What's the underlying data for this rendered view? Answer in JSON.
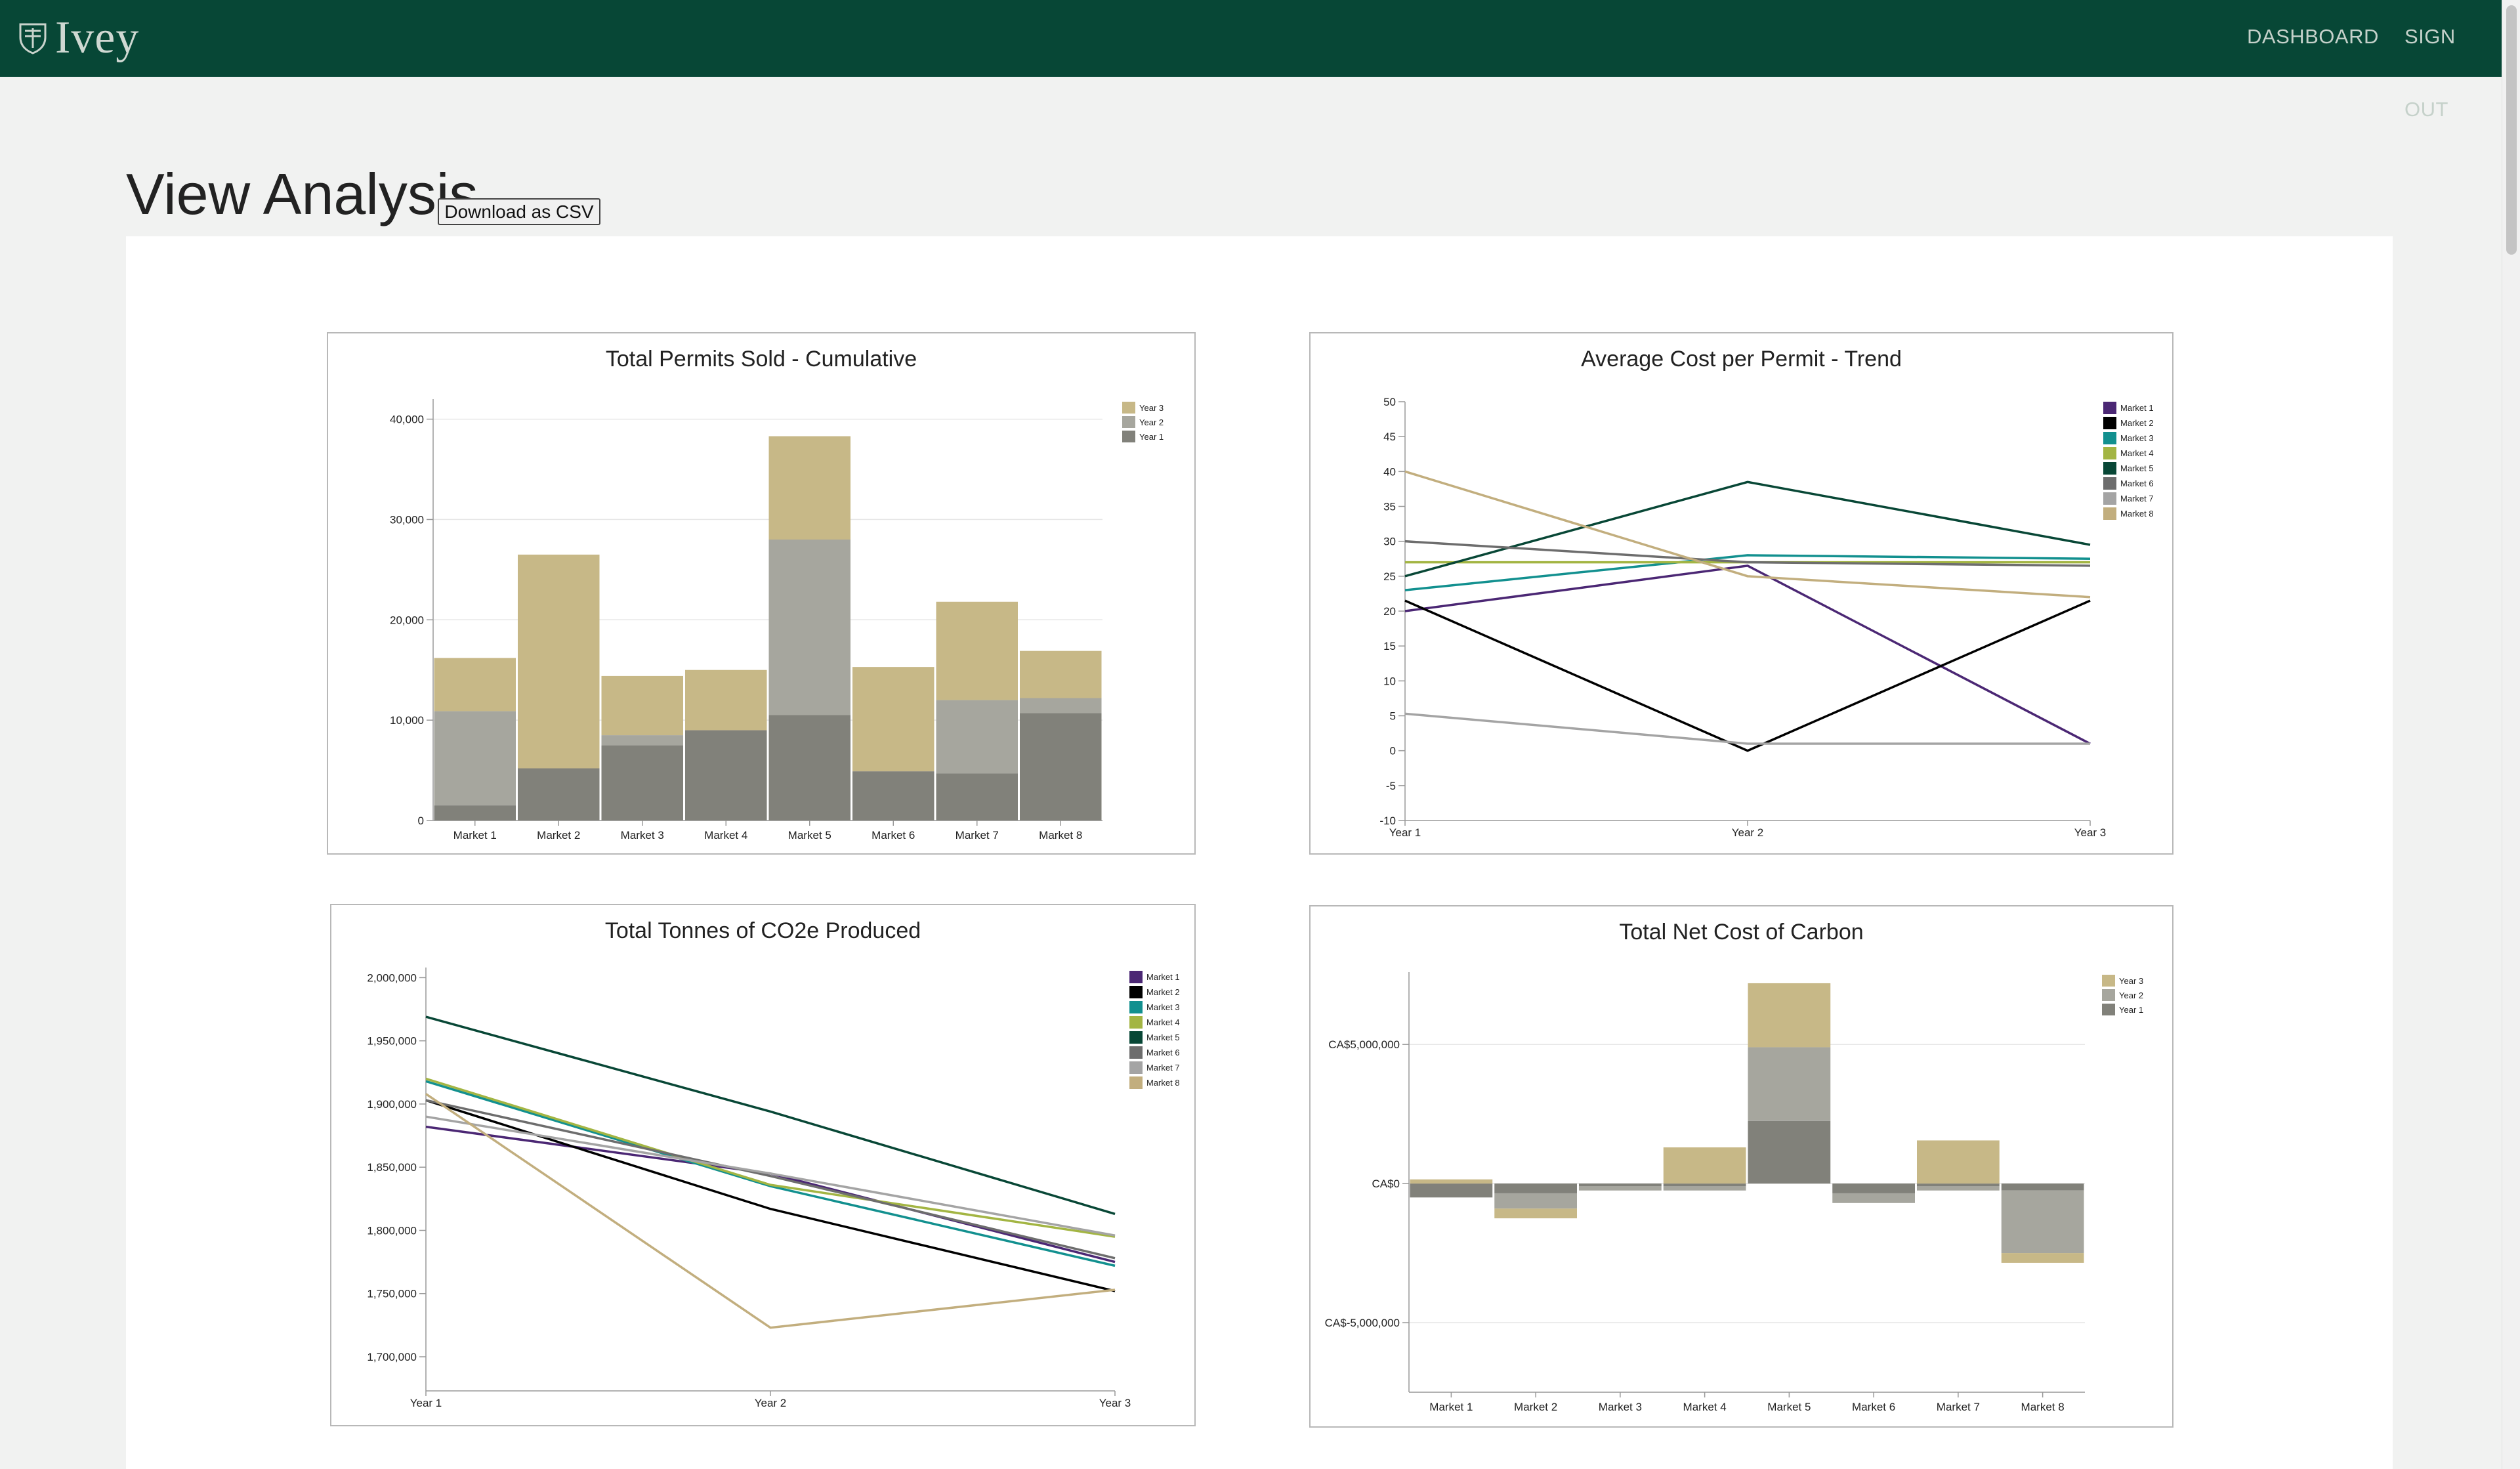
{
  "header": {
    "logo_text": "Ivey",
    "nav": {
      "dashboard": "DASHBOARD",
      "sign_out": "SIGN OUT"
    }
  },
  "page": {
    "title": "View Analysis",
    "download_button": "Download as CSV"
  },
  "colors": {
    "header_bg": "#074736",
    "year1": "#81817a",
    "year2": "#a6a69e",
    "year3": "#c7b887",
    "market1": "#4b2774",
    "market2": "#000000",
    "market3": "#12908f",
    "market4": "#a3b543",
    "market5": "#084736",
    "market6": "#6d6d6d",
    "market7": "#a4a4a4",
    "market8": "#c2ae7e"
  },
  "chart_data": [
    {
      "id": "permits",
      "type": "bar",
      "stacked": true,
      "title": "Total Permits Sold - Cumulative",
      "categories": [
        "Market 1",
        "Market 2",
        "Market 3",
        "Market 4",
        "Market 5",
        "Market 6",
        "Market 7",
        "Market 8"
      ],
      "series": [
        {
          "name": "Year 1",
          "values": [
            1500,
            5200,
            7500,
            9000,
            10500,
            4900,
            4700,
            10700
          ]
        },
        {
          "name": "Year 2",
          "values": [
            9400,
            0,
            1000,
            0,
            17500,
            0,
            7300,
            1500
          ]
        },
        {
          "name": "Year 3",
          "values": [
            5300,
            21300,
            5900,
            6000,
            10300,
            10400,
            9800,
            4700
          ]
        }
      ],
      "ylim": [
        0,
        42000
      ],
      "yticks": [
        0,
        10000,
        20000,
        30000,
        40000
      ],
      "ytick_labels": [
        "0",
        "10,000",
        "20,000",
        "30,000",
        "40,000"
      ],
      "legend": [
        "Year 3",
        "Year 2",
        "Year 1"
      ],
      "legend_position": "top-right"
    },
    {
      "id": "avgcost",
      "type": "line",
      "title": "Average Cost per Permit - Trend",
      "x": [
        "Year 1",
        "Year 2",
        "Year 3"
      ],
      "series": [
        {
          "name": "Market 1",
          "values": [
            20,
            26.5,
            1
          ]
        },
        {
          "name": "Market 2",
          "values": [
            21.5,
            0,
            21.5
          ]
        },
        {
          "name": "Market 3",
          "values": [
            23,
            28,
            27.5
          ]
        },
        {
          "name": "Market 4",
          "values": [
            27,
            27,
            27
          ]
        },
        {
          "name": "Market 5",
          "values": [
            25,
            38.5,
            29.5
          ]
        },
        {
          "name": "Market 6",
          "values": [
            30,
            27,
            26.5
          ]
        },
        {
          "name": "Market 7",
          "values": [
            5.3,
            1,
            1
          ]
        },
        {
          "name": "Market 8",
          "values": [
            40,
            25,
            22
          ]
        }
      ],
      "ylim": [
        -10,
        50
      ],
      "yticks": [
        -10,
        -5,
        0,
        5,
        10,
        15,
        20,
        25,
        30,
        35,
        40,
        45,
        50
      ],
      "ytick_labels": [
        "-10",
        "-5",
        "0",
        "5",
        "10",
        "15",
        "20",
        "25",
        "30",
        "35",
        "40",
        "45",
        "50"
      ],
      "legend_position": "top-right"
    },
    {
      "id": "co2",
      "type": "line",
      "title": "Total Tonnes of CO2e Produced",
      "x": [
        "Year 1",
        "Year 2",
        "Year 3"
      ],
      "series": [
        {
          "name": "Market 1",
          "values": [
            1882000,
            1845000,
            1775000
          ]
        },
        {
          "name": "Market 2",
          "values": [
            1903000,
            1817000,
            1752000
          ]
        },
        {
          "name": "Market 3",
          "values": [
            1918000,
            1835000,
            1772000
          ]
        },
        {
          "name": "Market 4",
          "values": [
            1920000,
            1836000,
            1795000
          ]
        },
        {
          "name": "Market 5",
          "values": [
            1969000,
            1894000,
            1813000
          ]
        },
        {
          "name": "Market 6",
          "values": [
            1903000,
            1843000,
            1778000
          ]
        },
        {
          "name": "Market 7",
          "values": [
            1890000,
            1845000,
            1796000
          ]
        },
        {
          "name": "Market 8",
          "values": [
            1908000,
            1723000,
            1753000
          ]
        }
      ],
      "ylim": [
        1673000,
        2008000
      ],
      "yticks": [
        1700000,
        1750000,
        1800000,
        1850000,
        1900000,
        1950000,
        2000000
      ],
      "ytick_labels": [
        "1,700,000",
        "1,750,000",
        "1,800,000",
        "1,850,000",
        "1,900,000",
        "1,950,000",
        "2,000,000"
      ],
      "legend_position": "top-right"
    },
    {
      "id": "netcost",
      "type": "bar",
      "stacked": true,
      "title": "Total Net Cost of Carbon",
      "categories": [
        "Market 1",
        "Market 2",
        "Market 3",
        "Market 4",
        "Market 5",
        "Market 6",
        "Market 7",
        "Market 8"
      ],
      "series": [
        {
          "name": "Year 1",
          "values": [
            -500000,
            -350000,
            -100000,
            -100000,
            2250000,
            -350000,
            -100000,
            -250000
          ]
        },
        {
          "name": "Year 2",
          "values": [
            0,
            -550000,
            -150000,
            -150000,
            2650000,
            -350000,
            -150000,
            -2250000
          ]
        },
        {
          "name": "Year 3",
          "values": [
            150000,
            -350000,
            0,
            1300000,
            2300000,
            0,
            1550000,
            -350000
          ]
        }
      ],
      "ylim": [
        -7500000,
        7600000
      ],
      "yticks": [
        -5000000,
        0,
        5000000
      ],
      "ytick_labels": [
        "CA$-5,000,000",
        "CA$0",
        "CA$5,000,000"
      ],
      "legend": [
        "Year 3",
        "Year 2",
        "Year 1"
      ],
      "legend_position": "top-right"
    }
  ]
}
